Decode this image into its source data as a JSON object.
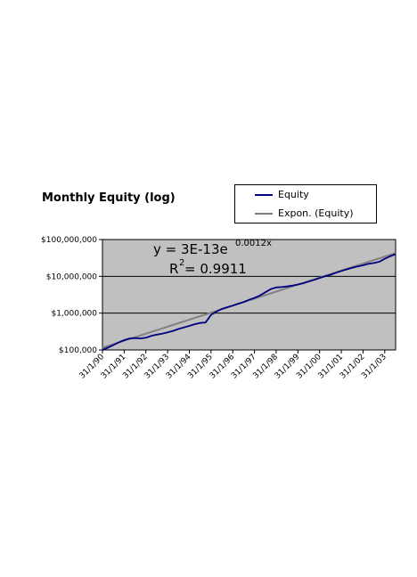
{
  "chart_data": {
    "type": "line",
    "title": "Monthly Equity (log)",
    "y_scale": "log",
    "ylim": [
      100000,
      100000000
    ],
    "yticks": [
      100000,
      1000000,
      10000000,
      100000000
    ],
    "ytick_labels": [
      "$100,000",
      "$1,000,000",
      "$10,000,000",
      "$100,000,000"
    ],
    "x_tick_labels": [
      "31/1/90",
      "31/1/91",
      "31/1/92",
      "31/1/93",
      "31/1/94",
      "31/1/95",
      "31/1/96",
      "31/1/97",
      "31/1/98",
      "31/1/99",
      "31/1/00",
      "31/1/01",
      "31/1/02",
      "31/1/03"
    ],
    "grid": "horizontal major lines",
    "plot_background": "#c0c0c0",
    "legend_position": "top-right",
    "series": [
      {
        "name": "Equity",
        "color": "#000080",
        "x": [
          "1990-01-31",
          "1990-04-30",
          "1990-07-31",
          "1990-10-31",
          "1991-01-31",
          "1991-04-30",
          "1991-07-31",
          "1991-10-31",
          "1992-01-31",
          "1992-04-30",
          "1992-07-31",
          "1992-10-31",
          "1993-01-31",
          "1993-04-30",
          "1993-07-31",
          "1993-10-31",
          "1994-01-31",
          "1994-04-30",
          "1994-07-31",
          "1994-10-31",
          "1995-01-31",
          "1995-04-30",
          "1995-07-31",
          "1995-10-31",
          "1996-01-31",
          "1996-04-30",
          "1996-07-31",
          "1996-10-31",
          "1997-01-31",
          "1997-04-30",
          "1997-07-31",
          "1997-10-31",
          "1998-01-31",
          "1998-04-30",
          "1998-07-31",
          "1998-10-31",
          "1999-01-31",
          "1999-04-30",
          "1999-07-31",
          "1999-10-31",
          "2000-01-31",
          "2000-04-30",
          "2000-07-31",
          "2000-10-31",
          "2001-01-31",
          "2001-04-30",
          "2001-07-31",
          "2001-10-31",
          "2002-01-31",
          "2002-04-30",
          "2002-07-31",
          "2002-10-31",
          "2003-01-31",
          "2003-04-30",
          "2003-07-31"
        ],
        "y": [
          100000,
          115000,
          135000,
          160000,
          185000,
          205000,
          210000,
          205000,
          215000,
          240000,
          260000,
          275000,
          300000,
          330000,
          370000,
          410000,
          450000,
          500000,
          540000,
          560000,
          900000,
          1100000,
          1300000,
          1450000,
          1600000,
          1800000,
          2000000,
          2300000,
          2600000,
          3000000,
          3700000,
          4500000,
          5000000,
          5100000,
          5300000,
          5600000,
          6000000,
          6500000,
          7200000,
          8000000,
          9000000,
          10000000,
          11000000,
          12500000,
          14000000,
          15500000,
          17000000,
          18500000,
          20000000,
          22000000,
          23000000,
          25000000,
          30000000,
          35000000,
          40000000
        ]
      },
      {
        "name": "Expon. (Equity)",
        "color": "#808080",
        "x": [
          "1990-01-31",
          "2003-07-31"
        ],
        "y": [
          115000,
          43000000
        ]
      }
    ],
    "annotations": {
      "equation_base": "y = 3E-13e",
      "equation_exponent": "0.0012x",
      "r2_prefix": "R",
      "r2_exponent": "2",
      "r2_value": " = 0.9911"
    }
  }
}
